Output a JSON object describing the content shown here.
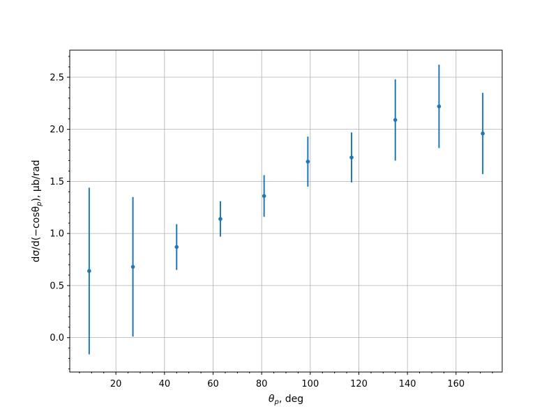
{
  "chart_data": {
    "type": "scatter",
    "title": "",
    "xlabel": "θp, deg",
    "xlabel_parts": {
      "symbol": "θ",
      "subscript": "p",
      "suffix": ", deg"
    },
    "ylabel": "dσ/d(−cosθp), μb/rad",
    "ylabel_parts": {
      "prefix": "dσ/d(−cosθ",
      "subscript": "p",
      "suffix": "), μb/rad"
    },
    "xlim": [
      1,
      179
    ],
    "ylim": [
      -0.33,
      2.76
    ],
    "x_ticks": [
      20,
      40,
      60,
      80,
      100,
      120,
      140,
      160
    ],
    "x_tick_labels": [
      "20",
      "40",
      "60",
      "80",
      "100",
      "120",
      "140",
      "160"
    ],
    "x_minor_step": 5,
    "y_ticks": [
      0.0,
      0.5,
      1.0,
      1.5,
      2.0,
      2.5
    ],
    "y_tick_labels": [
      "0.0",
      "0.5",
      "1.0",
      "1.5",
      "2.0",
      "2.5"
    ],
    "y_minor_step": 0.1,
    "grid": true,
    "color": "#1f77b4",
    "series": [
      {
        "x": [
          9,
          27,
          45,
          63,
          81,
          99,
          117,
          135,
          153,
          171
        ],
        "y": [
          0.64,
          0.68,
          0.87,
          1.14,
          1.36,
          1.69,
          1.73,
          2.09,
          2.22,
          1.96
        ],
        "y_err": [
          0.8,
          0.67,
          0.22,
          0.17,
          0.2,
          0.24,
          0.24,
          0.39,
          0.4,
          0.39
        ]
      }
    ]
  }
}
